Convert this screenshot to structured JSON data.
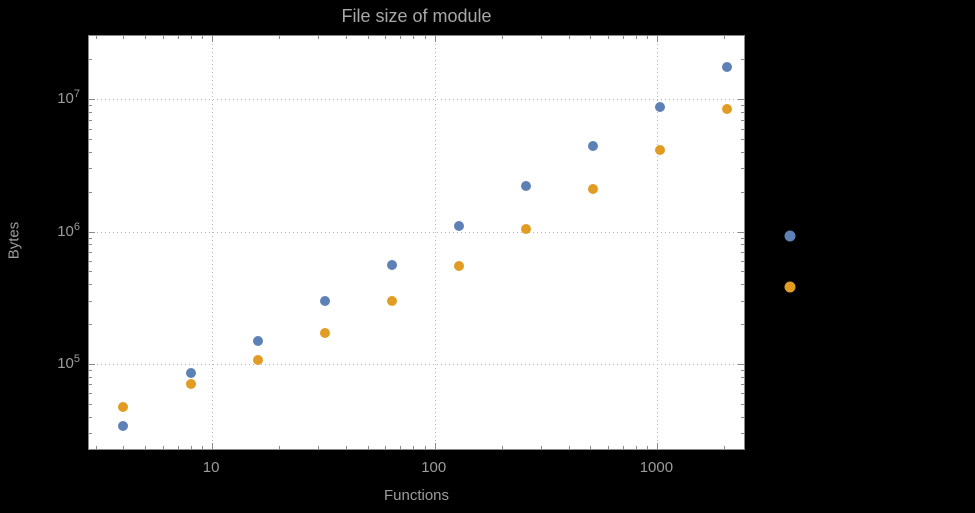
{
  "chart_data": {
    "type": "scatter",
    "title": "File size of module",
    "xlabel": "Functions",
    "ylabel": "Bytes",
    "scale": "log-log",
    "grid": true,
    "x": [
      4,
      8,
      16,
      32,
      64,
      128,
      256,
      512,
      1024,
      2048
    ],
    "series": [
      {
        "name": "blue-series",
        "color": "#5e81b5",
        "values": [
          34000,
          85000,
          150000,
          300000,
          560000,
          1100000,
          2200000,
          4400000,
          8800000,
          17500000
        ]
      },
      {
        "name": "orange-series",
        "color": "#e19c24",
        "values": [
          47000,
          70000,
          108000,
          170000,
          300000,
          550000,
          1050000,
          2100000,
          4100000,
          8400000
        ]
      }
    ],
    "x_ticks": [
      10,
      100,
      1000
    ],
    "x_tick_labels": [
      "10",
      "100",
      "1000"
    ],
    "y_ticks": [
      100000,
      1000000,
      10000000
    ],
    "y_tick_labels": [
      "10^5",
      "10^6",
      "10^7"
    ],
    "xlim": [
      2.8,
      2500
    ],
    "ylim": [
      22000,
      30000000
    ],
    "legend_markers": [
      {
        "color": "#5e81b5"
      },
      {
        "color": "#e19c24"
      }
    ]
  },
  "colors": {
    "background": "#000000",
    "plot_background": "#ffffff",
    "frame": "#8a8a8a",
    "grid": "#b5b5b5",
    "text": "#9c9c9c",
    "title_text": "#a8a8a8"
  }
}
